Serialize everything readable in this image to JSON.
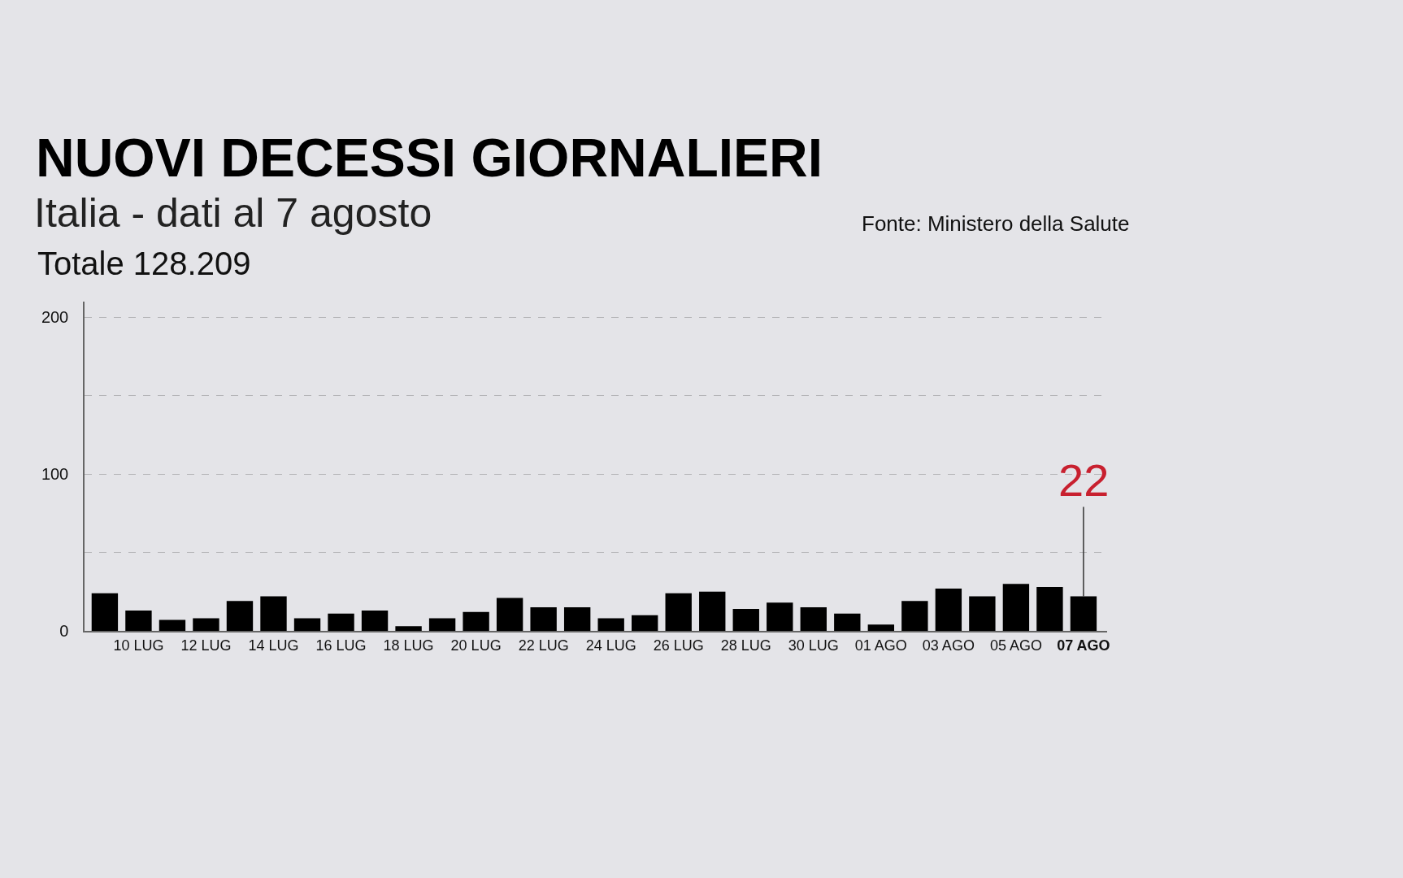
{
  "chart_data": {
    "type": "bar",
    "title": "NUOVI DECESSI GIORNALIERI",
    "subtitle": "Italia - dati al 7 agosto",
    "annotations": [
      "Totale 128.209",
      "Fonte: Ministero della Salute"
    ],
    "categories": [
      null,
      "10 LUG",
      null,
      "12 LUG",
      null,
      "14 LUG",
      null,
      "16 LUG",
      null,
      "18 LUG",
      null,
      "20 LUG",
      null,
      "22 LUG",
      null,
      "24 LUG",
      null,
      "26 LUG",
      null,
      "28 LUG",
      null,
      "30 LUG",
      null,
      "01 AGO",
      null,
      "03 AGO",
      null,
      "05 AGO",
      null,
      "07 AGO"
    ],
    "values": [
      24,
      13,
      7,
      8,
      19,
      22,
      8,
      11,
      13,
      3,
      8,
      12,
      21,
      15,
      15,
      8,
      10,
      24,
      25,
      14,
      18,
      15,
      11,
      4,
      19,
      27,
      22,
      30,
      28,
      22
    ],
    "value_labels": [
      null,
      null,
      null,
      null,
      null,
      null,
      null,
      null,
      null,
      null,
      null,
      null,
      null,
      null,
      null,
      null,
      null,
      null,
      null,
      null,
      null,
      null,
      null,
      null,
      null,
      null,
      null,
      null,
      null,
      "22"
    ],
    "color": "#000000",
    "ylim": [
      0,
      210
    ],
    "yticks": [
      0,
      {
        "value": 50,
        "label": null
      },
      100,
      {
        "value": 150,
        "label": null
      },
      200
    ],
    "grid": "y",
    "legend": false
  }
}
